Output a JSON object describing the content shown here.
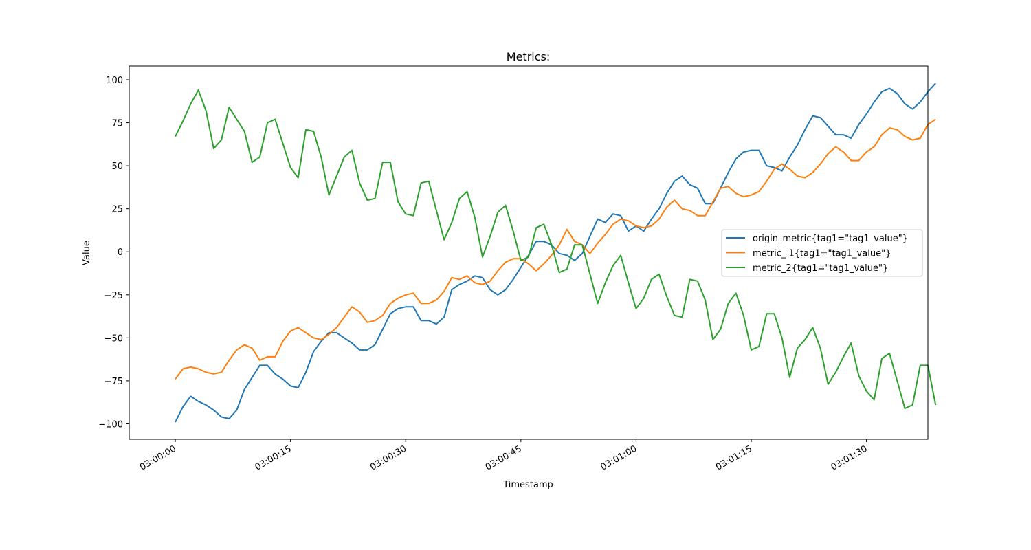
{
  "chart_data": {
    "type": "line",
    "title": "Metrics:",
    "xlabel": "Timestamp",
    "ylabel": "Value",
    "x_start": "03:00:00",
    "x_interval_seconds": 1,
    "xlim_seconds": [
      -6,
      98
    ],
    "ylim": [
      -109,
      108
    ],
    "xticks": [
      "03:00:00",
      "03:00:15",
      "03:00:30",
      "03:00:45",
      "03:01:00",
      "03:01:15",
      "03:01:30"
    ],
    "yticks": [
      -100,
      -75,
      -50,
      -25,
      0,
      25,
      50,
      75,
      100
    ],
    "legend_position": "center-right",
    "grid": false,
    "series": [
      {
        "name": "origin_metric{tag1=\"tag1_value\"}",
        "color": "#1f77b4",
        "values": [
          -99,
          -90,
          -84,
          -87,
          -89,
          -92,
          -96,
          -97,
          -92,
          -80,
          -73,
          -66,
          -66,
          -71,
          -74,
          -78,
          -79,
          -70,
          -58,
          -52,
          -47,
          -47,
          -50,
          -53,
          -57,
          -57,
          -54,
          -45,
          -36,
          -33,
          -32,
          -32,
          -40,
          -40,
          -42,
          -38,
          -22,
          -19,
          -17,
          -14,
          -15,
          -22,
          -25,
          -22,
          -16,
          -9,
          -2,
          6,
          6,
          4,
          -1,
          -2,
          -5,
          -1,
          9,
          19,
          17,
          22,
          21,
          12,
          15,
          12,
          19,
          25,
          34,
          41,
          44,
          39,
          37,
          28,
          28,
          37,
          46,
          54,
          58,
          59,
          59,
          50,
          49,
          47,
          55,
          62,
          71,
          79,
          78,
          73,
          68,
          68,
          66,
          74,
          80,
          87,
          93,
          95,
          92,
          86,
          83,
          87,
          93,
          98
        ]
      },
      {
        "name": "metric_ 1{tag1=\"tag1_value\"}",
        "color": "#ff7f0e",
        "values": [
          -74,
          -68,
          -67,
          -68,
          -70,
          -71,
          -70,
          -63,
          -57,
          -54,
          -56,
          -63,
          -61,
          -61,
          -52,
          -46,
          -44,
          -47,
          -50,
          -51,
          -48,
          -44,
          -38,
          -32,
          -35,
          -41,
          -40,
          -37,
          -30,
          -27,
          -25,
          -24,
          -30,
          -30,
          -28,
          -23,
          -15,
          -16,
          -14,
          -18,
          -19,
          -17,
          -11,
          -6,
          -4,
          -4,
          -7,
          -11,
          -7,
          -2,
          4,
          13,
          6,
          4,
          -1,
          5,
          10,
          16,
          19,
          18,
          15,
          14,
          15,
          19,
          26,
          30,
          25,
          24,
          21,
          21,
          29,
          37,
          38,
          34,
          32,
          33,
          35,
          41,
          48,
          51,
          48,
          44,
          43,
          46,
          51,
          57,
          61,
          58,
          53,
          53,
          58,
          61,
          68,
          72,
          71,
          67,
          65,
          66,
          74,
          77
        ]
      },
      {
        "name": "metric_2{tag1=\"tag1_value\"}",
        "color": "#2ca02c",
        "values": [
          67,
          76,
          86,
          94,
          82,
          60,
          65,
          84,
          77,
          70,
          52,
          55,
          75,
          77,
          63,
          49,
          43,
          71,
          70,
          55,
          33,
          44,
          55,
          59,
          40,
          30,
          31,
          52,
          52,
          29,
          22,
          21,
          40,
          41,
          24,
          7,
          17,
          31,
          35,
          20,
          -3,
          9,
          23,
          27,
          12,
          -5,
          -3,
          14,
          16,
          4,
          -12,
          -10,
          4,
          4,
          -13,
          -30,
          -18,
          -8,
          -2,
          -18,
          -33,
          -27,
          -16,
          -13,
          -26,
          -37,
          -38,
          -16,
          -17,
          -28,
          -51,
          -45,
          -30,
          -24,
          -37,
          -57,
          -55,
          -36,
          -36,
          -50,
          -73,
          -56,
          -51,
          -44,
          -56,
          -77,
          -70,
          -61,
          -53,
          -72,
          -81,
          -86,
          -62,
          -59,
          -75,
          -91,
          -89,
          -66,
          -66,
          -89
        ]
      }
    ]
  }
}
